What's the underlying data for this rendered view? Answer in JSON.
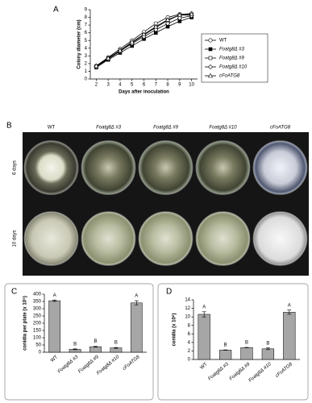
{
  "chart_data": [
    {
      "type": "line",
      "panel_label": "A",
      "xlabel": "Days after inoculation",
      "ylabel": "Colony diameter (cm)",
      "x": [
        2,
        3,
        4,
        5,
        6,
        7,
        8,
        9,
        10
      ],
      "xlim": [
        1.5,
        10.5
      ],
      "xticks": [
        2,
        3,
        4,
        5,
        6,
        7,
        8,
        9,
        10
      ],
      "ylim": [
        0,
        9
      ],
      "yticks": [
        0,
        1,
        2,
        3,
        4,
        5,
        6,
        7,
        8,
        9
      ],
      "series": [
        {
          "name": "WT",
          "color": "#000000",
          "marker": "circle",
          "marker_fill": "#ffffff",
          "values": [
            1.7,
            2.8,
            3.9,
            5.0,
            6.1,
            7.2,
            8.0,
            8.4,
            8.5
          ]
        },
        {
          "name": "Foatg8Δ #3",
          "color": "#000000",
          "marker": "square",
          "marker_fill": "#000000",
          "values": [
            1.5,
            2.5,
            3.4,
            4.3,
            5.2,
            6.0,
            6.8,
            7.5,
            8.0
          ]
        },
        {
          "name": "Foatg8Δ #9",
          "color": "#000000",
          "marker": "square",
          "marker_fill": "#ffffff",
          "values": [
            1.6,
            2.7,
            3.7,
            4.7,
            5.7,
            6.7,
            7.6,
            8.3,
            8.3
          ]
        },
        {
          "name": "Foatg8Δ #10",
          "color": "#000000",
          "marker": "diamond",
          "marker_fill": "#ffffff",
          "values": [
            1.6,
            2.6,
            3.6,
            4.6,
            5.5,
            6.4,
            7.2,
            7.9,
            8.2
          ]
        },
        {
          "name": "cFoATG8",
          "color": "#000000",
          "marker": "triangle",
          "marker_fill": "#ffffff",
          "values": [
            1.7,
            2.7,
            3.7,
            4.8,
            5.8,
            6.8,
            7.7,
            8.3,
            8.4
          ]
        }
      ]
    },
    {
      "type": "bar",
      "panel_label": "C",
      "ylabel": "conidia per plate (x 10⁵)",
      "categories": [
        "WT",
        "Foatg8Δ #3",
        "Foatg8Δ #9",
        "Foatg8Δ #10",
        "cFoATG8"
      ],
      "values": [
        355,
        20,
        38,
        30,
        340
      ],
      "errors": [
        5,
        3,
        3,
        3,
        15
      ],
      "letters": [
        "A",
        "B",
        "B",
        "B",
        "A"
      ],
      "color": "#a6a6a6",
      "ylim": [
        0,
        400
      ],
      "yticks": [
        0,
        50,
        100,
        150,
        200,
        250,
        300,
        350,
        400
      ]
    },
    {
      "type": "bar",
      "panel_label": "D",
      "ylabel": "conidia (x 10⁶)",
      "categories": [
        "WT",
        "Foatg8Δ #3",
        "Foatg8Δ #9",
        "Foatg8Δ #10",
        "cFoATG8"
      ],
      "values": [
        10.6,
        2.2,
        2.8,
        2.5,
        11.1
      ],
      "errors": [
        0.6,
        0.05,
        0.05,
        0.2,
        0.5
      ],
      "letters": [
        "A",
        "B",
        "B",
        "B",
        "A"
      ],
      "color": "#a6a6a6",
      "ylim": [
        0,
        14
      ],
      "yticks": [
        0,
        2,
        4,
        6,
        8,
        10,
        12,
        14
      ]
    }
  ],
  "photo_panel": {
    "label": "B",
    "columns": [
      "WT",
      "Foatg8Δ #3",
      "Foatg8Δ #9",
      "Foatg8Δ #10",
      "cFoATG8"
    ],
    "rows": [
      "6 days",
      "10 days"
    ]
  }
}
